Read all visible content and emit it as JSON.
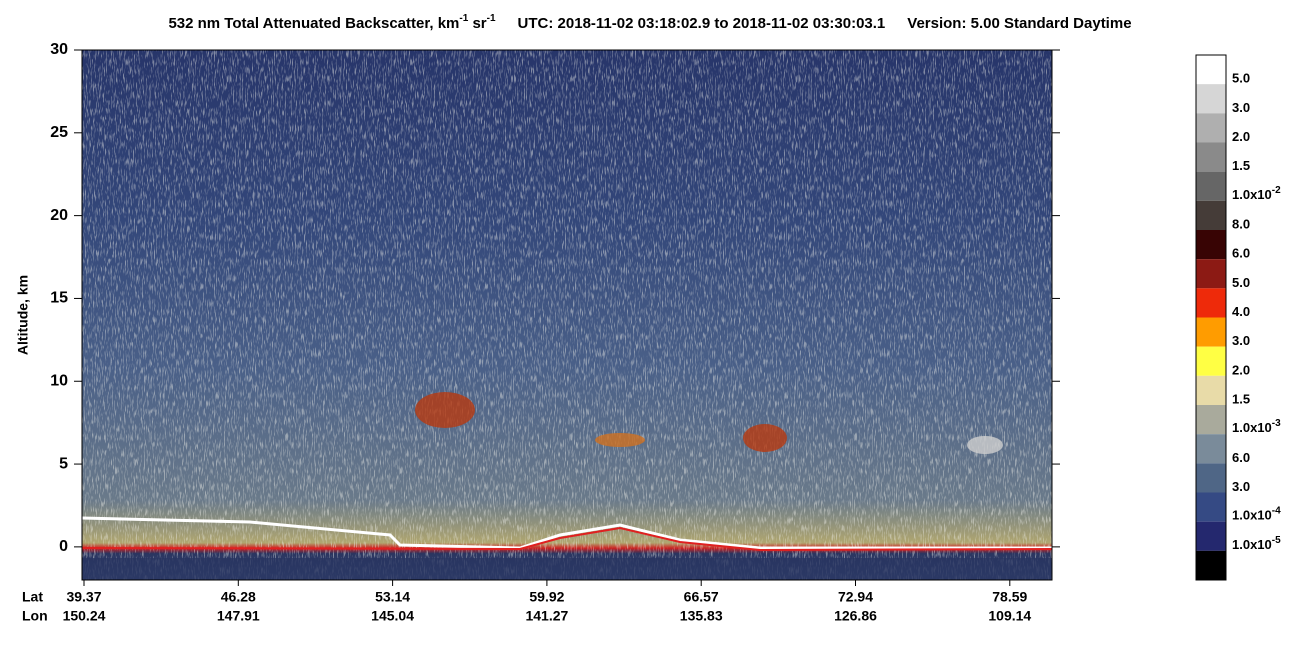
{
  "chart_data": {
    "type": "curtain",
    "title": {
      "main": "532 nm Total Attenuated Backscatter, km",
      "exp1": "-1",
      "unit2": " sr",
      "exp2": "-1",
      "utc": "UTC:  2018-11-02 03:18:02.9  to  2018-11-02 03:30:03.1",
      "version": "Version: 5.00  Standard  Daytime"
    },
    "y_label": "Altitude, km",
    "ylim": [
      -2,
      30
    ],
    "yticks": [
      0,
      5,
      10,
      15,
      20,
      25,
      30
    ],
    "x_row_labels": [
      "Lat",
      "Lon"
    ],
    "lat": [
      "39.37",
      "46.28",
      "53.14",
      "59.92",
      "66.57",
      "72.94",
      "78.59"
    ],
    "lon": [
      "150.24",
      "147.91",
      "145.04",
      "141.27",
      "135.83",
      "126.86",
      "109.14"
    ],
    "colorbar": {
      "colors": [
        "#ffffff",
        "#d6d6d6",
        "#afafaf",
        "#8a8a8a",
        "#666666",
        "#453c38",
        "#380404",
        "#8c1a14",
        "#ee2a0a",
        "#ff9c00",
        "#ffff44",
        "#e8dba8",
        "#a9aa9c",
        "#7a8b9a",
        "#4f6686",
        "#354a84",
        "#24286e",
        "#000000"
      ],
      "labels": [
        "5.0",
        "3.0",
        "2.0",
        "1.5",
        {
          "text": "1.0x10",
          "sup": "-2"
        },
        "8.0",
        "6.0",
        "5.0",
        "4.0",
        "3.0",
        "2.0",
        "1.5",
        {
          "text": "1.0x10",
          "sup": "-3"
        },
        "6.0",
        "3.0",
        {
          "text": "1.0x10",
          "sup": "-4"
        },
        {
          "text": "1.0x10",
          "sup": "-5"
        }
      ]
    }
  }
}
